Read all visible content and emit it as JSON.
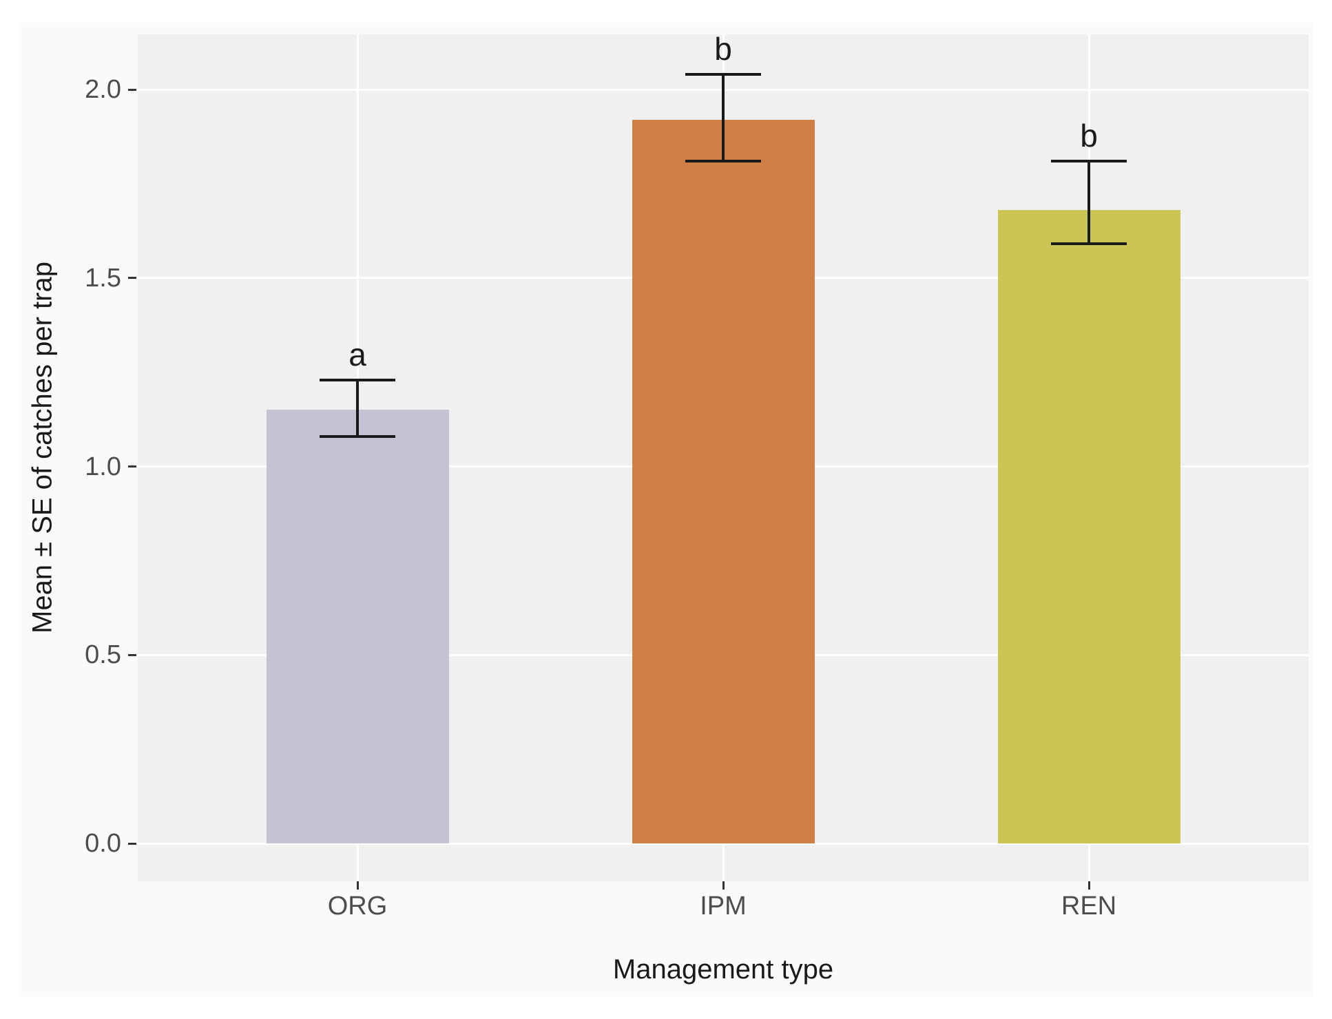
{
  "chart_data": {
    "type": "bar",
    "title": "",
    "xlabel": "Management type",
    "ylabel": "Mean ± SE of catches per trap",
    "categories": [
      "ORG",
      "IPM",
      "REN"
    ],
    "values": [
      1.15,
      1.92,
      1.68
    ],
    "error_upper": [
      1.23,
      2.04,
      1.81
    ],
    "error_lower": [
      1.08,
      1.81,
      1.59
    ],
    "sig_letters": [
      "a",
      "b",
      "b"
    ],
    "bar_colors": [
      "#c4c3d3",
      "#ce8045",
      "#cdc456"
    ],
    "yticks": [
      0.0,
      0.5,
      1.0,
      1.5,
      2.0
    ],
    "ytick_labels": [
      "0.0",
      "0.5",
      "1.0",
      "1.5",
      "2.0"
    ],
    "ylim": [
      -0.1,
      2.15
    ],
    "grid": true,
    "legend": false,
    "panel_bg": "#f0f0f0",
    "grid_color": "#ffffff",
    "figure_bg": "#fafafa",
    "errorbar_color": "#1a1a1a",
    "tick_label_color": "#4d4d4d",
    "axis_title_color": "#1a1a1a"
  }
}
